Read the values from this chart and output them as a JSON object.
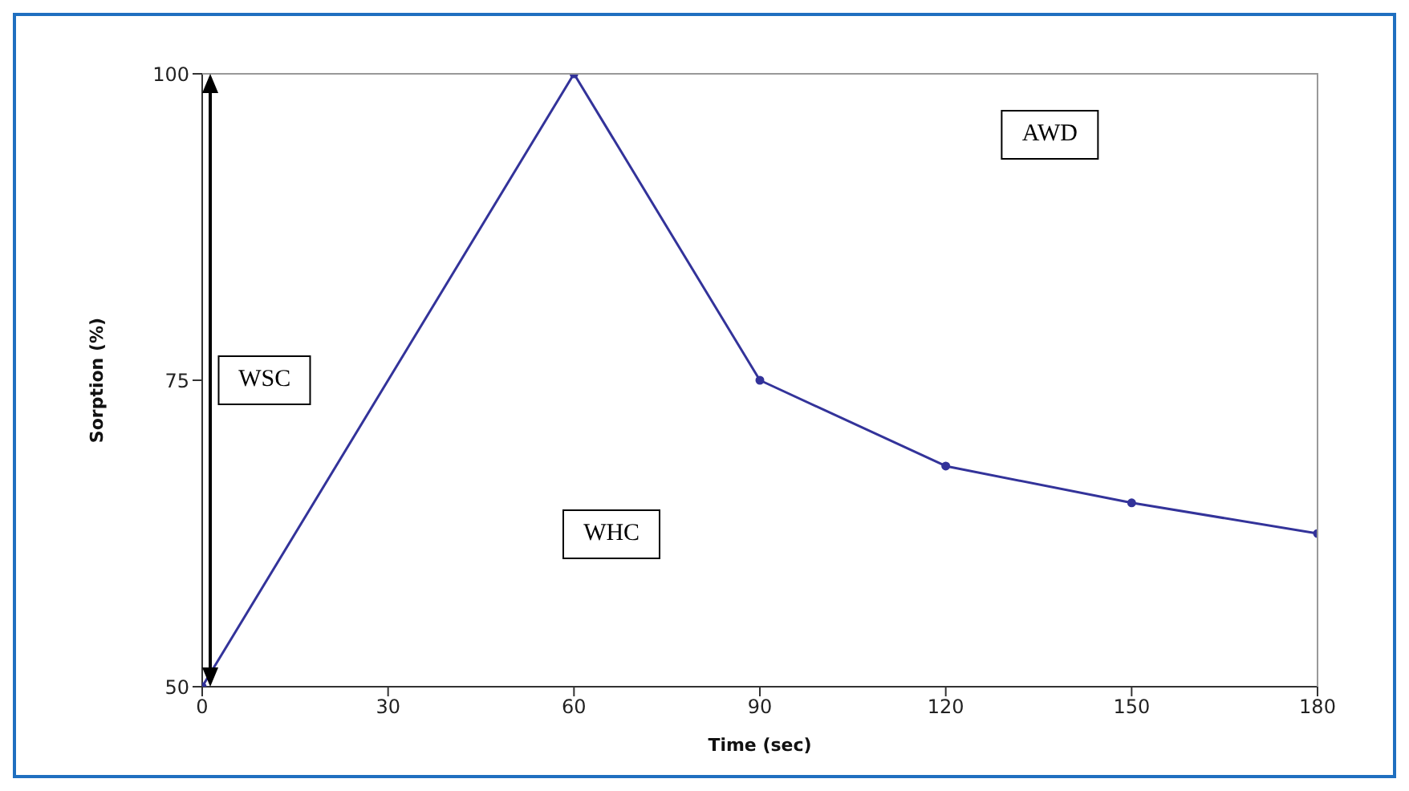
{
  "chart_data": {
    "type": "line",
    "xlabel": "Time (sec)",
    "ylabel": "Sorption (%)",
    "x": [
      0,
      60,
      90,
      120,
      150,
      180
    ],
    "series": [
      {
        "color": "#33339a",
        "values": [
          50,
          100,
          75,
          68,
          65,
          62.5
        ]
      }
    ],
    "xlim": [
      0,
      180
    ],
    "xticks": [
      0,
      30,
      60,
      90,
      120,
      150,
      180
    ],
    "ylim": [
      50,
      100
    ],
    "yticks": [
      50,
      75,
      100
    ],
    "grid": false,
    "legend": false,
    "marker": "circle",
    "line_style": "solid",
    "annotations": [
      "WSC",
      "WHC",
      "AWD"
    ]
  }
}
